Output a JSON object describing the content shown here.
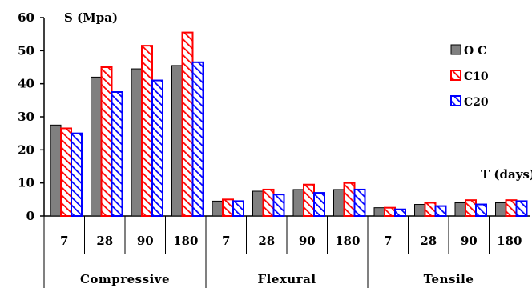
{
  "chart_data": {
    "type": "bar",
    "ylabel": "S (Mpa)",
    "xlabel": "T (days)",
    "ylim": [
      0,
      60
    ],
    "yticks": [
      0,
      10,
      20,
      30,
      40,
      50,
      60
    ],
    "grid": false,
    "legend_position": "right",
    "groups": [
      {
        "name": "Compressive",
        "categories": [
          "7",
          "28",
          "90",
          "180"
        ]
      },
      {
        "name": "Flexural",
        "categories": [
          "7",
          "28",
          "90",
          "180"
        ]
      },
      {
        "name": "Tensile",
        "categories": [
          "7",
          "28",
          "90",
          "180"
        ]
      }
    ],
    "series": [
      {
        "name": "OC",
        "pattern": "solid",
        "color": "#808080",
        "values": [
          27.5,
          42.0,
          44.5,
          45.5,
          4.5,
          7.5,
          8.0,
          8.0,
          2.5,
          3.5,
          4.0,
          4.0
        ]
      },
      {
        "name": "C10",
        "pattern": "hatch",
        "color": "#ff0000",
        "values": [
          26.5,
          45.0,
          51.5,
          55.5,
          5.0,
          8.0,
          9.5,
          10.0,
          2.5,
          4.0,
          4.8,
          4.8
        ]
      },
      {
        "name": "C20",
        "pattern": "hatch",
        "color": "#0000ff",
        "values": [
          25.0,
          37.5,
          41.0,
          46.5,
          4.5,
          6.5,
          7.0,
          8.0,
          2.0,
          3.0,
          3.5,
          4.5
        ]
      }
    ]
  }
}
